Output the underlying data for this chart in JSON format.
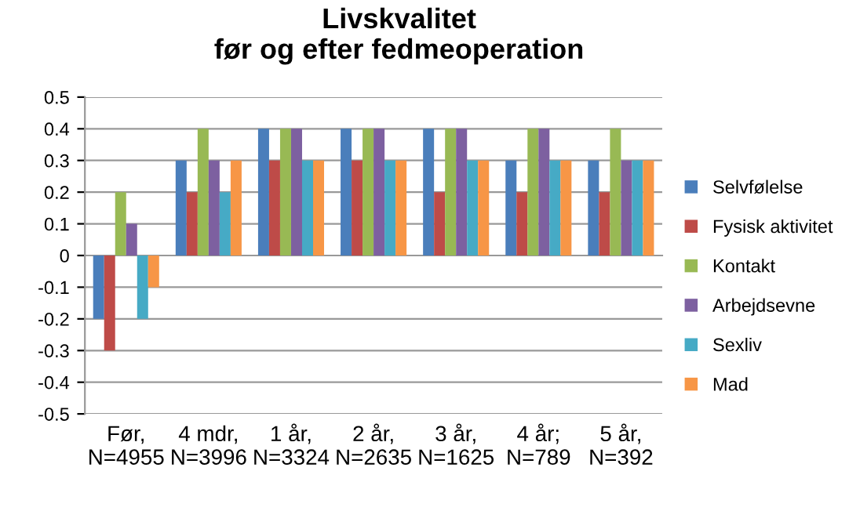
{
  "chart_data": {
    "type": "bar",
    "title": "Livskvalitet\nfør og efter fedmeoperation",
    "categories": [
      "Før,\nN=4955",
      "4 mdr,\nN=3996",
      "1 år,\nN=3324",
      "2 år,\nN=2635",
      "3 år,\nN=1625",
      "4 år;\nN=789",
      "5 år,\nN=392"
    ],
    "series": [
      {
        "name": "Selvfølelse",
        "color": "#4a7ebb",
        "values": [
          -0.2,
          0.3,
          0.4,
          0.4,
          0.4,
          0.3,
          0.3
        ]
      },
      {
        "name": "Fysisk aktivitet",
        "color": "#be4b48",
        "values": [
          -0.3,
          0.2,
          0.3,
          0.3,
          0.2,
          0.2,
          0.2
        ]
      },
      {
        "name": "Kontakt",
        "color": "#98b954",
        "values": [
          0.2,
          0.4,
          0.4,
          0.4,
          0.4,
          0.4,
          0.4
        ]
      },
      {
        "name": "Arbejdsevne",
        "color": "#7d60a0",
        "values": [
          0.1,
          0.3,
          0.4,
          0.4,
          0.4,
          0.4,
          0.3
        ]
      },
      {
        "name": "Sexliv",
        "color": "#46aac5",
        "values": [
          -0.2,
          0.2,
          0.3,
          0.3,
          0.3,
          0.3,
          0.3
        ]
      },
      {
        "name": "Mad",
        "color": "#f79646",
        "values": [
          -0.1,
          0.3,
          0.3,
          0.3,
          0.3,
          0.3,
          0.3
        ]
      }
    ],
    "ylim": [
      -0.5,
      0.5
    ],
    "yticks": [
      -0.5,
      -0.4,
      -0.3,
      -0.2,
      -0.1,
      0,
      0.1,
      0.2,
      0.3,
      0.4,
      0.5
    ],
    "grid": "y",
    "legend": "right"
  }
}
